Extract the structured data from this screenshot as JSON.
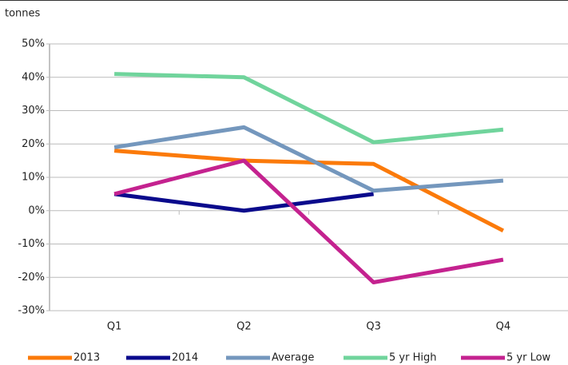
{
  "chart_data": {
    "type": "line",
    "y_label": "tonnes",
    "categories": [
      "Q1",
      "Q2",
      "Q3",
      "Q4"
    ],
    "series": [
      {
        "name": "2013",
        "color": "#fb7a0a",
        "values": [
          18,
          15,
          14,
          -6
        ]
      },
      {
        "name": "2014",
        "color": "#0a0a8c",
        "values": [
          5,
          0,
          5,
          null
        ]
      },
      {
        "name": "Average",
        "color": "#7497bd",
        "values": [
          19,
          25,
          6,
          9
        ]
      },
      {
        "name": "5 yr High",
        "color": "#70d49c",
        "values": [
          41,
          40,
          20.5,
          24.3
        ]
      },
      {
        "name": "5 yr Low",
        "color": "#c4228f",
        "values": [
          5,
          15,
          -21.5,
          -14.7
        ]
      }
    ],
    "ylim": [
      -30,
      50
    ],
    "yticks": [
      {
        "value": -30,
        "label": "-30%"
      },
      {
        "value": -20,
        "label": "-20%"
      },
      {
        "value": -10,
        "label": "-10%"
      },
      {
        "value": 0,
        "label": "0%"
      },
      {
        "value": 10,
        "label": "10%"
      },
      {
        "value": 20,
        "label": "20%"
      },
      {
        "value": 30,
        "label": "30%"
      },
      {
        "value": 40,
        "label": "40%"
      },
      {
        "value": 50,
        "label": "50%"
      }
    ],
    "grid": true,
    "legend": "bottom"
  }
}
